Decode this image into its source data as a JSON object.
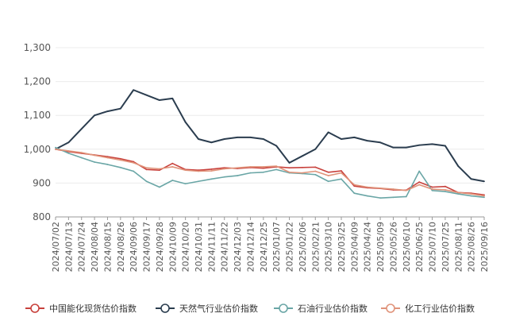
{
  "chart_data": {
    "type": "line",
    "x": [
      "2024/07/02",
      "2024/07/13",
      "2024/07/24",
      "2024/08/04",
      "2024/08/15",
      "2024/08/26",
      "2024/09/06",
      "2024/09/17",
      "2024/09/28",
      "2024/10/09",
      "2024/10/20",
      "2024/10/31",
      "2024/11/11",
      "2024/11/22",
      "2024/12/03",
      "2024/12/14",
      "2024/12/25",
      "2025/01/07",
      "2025/01/22",
      "2025/02/06",
      "2025/02/21",
      "2025/03/10",
      "2025/03/25",
      "2025/04/09",
      "2025/04/24",
      "2025/05/09",
      "2025/05/26",
      "2025/06/10",
      "2025/06/25",
      "2025/07/10",
      "2025/07/25",
      "2025/08/11",
      "2025/08/26",
      "2025/09/16"
    ],
    "ylim": [
      800,
      1300
    ],
    "yticks": [
      "800",
      "900",
      "1,000",
      "1,100",
      "1,200",
      "1,300"
    ],
    "legend_position": "bottom",
    "series": [
      {
        "name": "中国能化现货估价指数",
        "color": "#c8413c",
        "values": [
          1000,
          993,
          988,
          983,
          978,
          972,
          963,
          940,
          938,
          958,
          940,
          938,
          941,
          945,
          943,
          946,
          944,
          948,
          945,
          946,
          947,
          932,
          936,
          891,
          886,
          884,
          880,
          879,
          903,
          888,
          890,
          872,
          870,
          865
        ]
      },
      {
        "name": "天然气行业估价指数",
        "color": "#2b3d4f",
        "values": [
          1000,
          1020,
          1060,
          1100,
          1112,
          1120,
          1175,
          1160,
          1145,
          1150,
          1080,
          1030,
          1020,
          1030,
          1035,
          1035,
          1030,
          1010,
          960,
          980,
          1000,
          1050,
          1030,
          1035,
          1025,
          1020,
          1005,
          1005,
          1012,
          1015,
          1010,
          950,
          912,
          905
        ]
      },
      {
        "name": "石油行业估价指数",
        "color": "#6aa6a6",
        "values": [
          1005,
          988,
          975,
          962,
          955,
          946,
          935,
          905,
          888,
          908,
          898,
          905,
          912,
          918,
          922,
          930,
          932,
          940,
          930,
          928,
          925,
          905,
          912,
          870,
          862,
          856,
          858,
          860,
          935,
          878,
          875,
          868,
          862,
          858
        ]
      },
      {
        "name": "化工行业估价指数",
        "color": "#e0937a",
        "values": [
          1000,
          995,
          990,
          982,
          975,
          968,
          960,
          945,
          942,
          948,
          938,
          935,
          936,
          942,
          945,
          948,
          948,
          950,
          932,
          930,
          935,
          922,
          930,
          895,
          888,
          885,
          882,
          878,
          895,
          882,
          880,
          872,
          868,
          862
        ]
      }
    ]
  }
}
